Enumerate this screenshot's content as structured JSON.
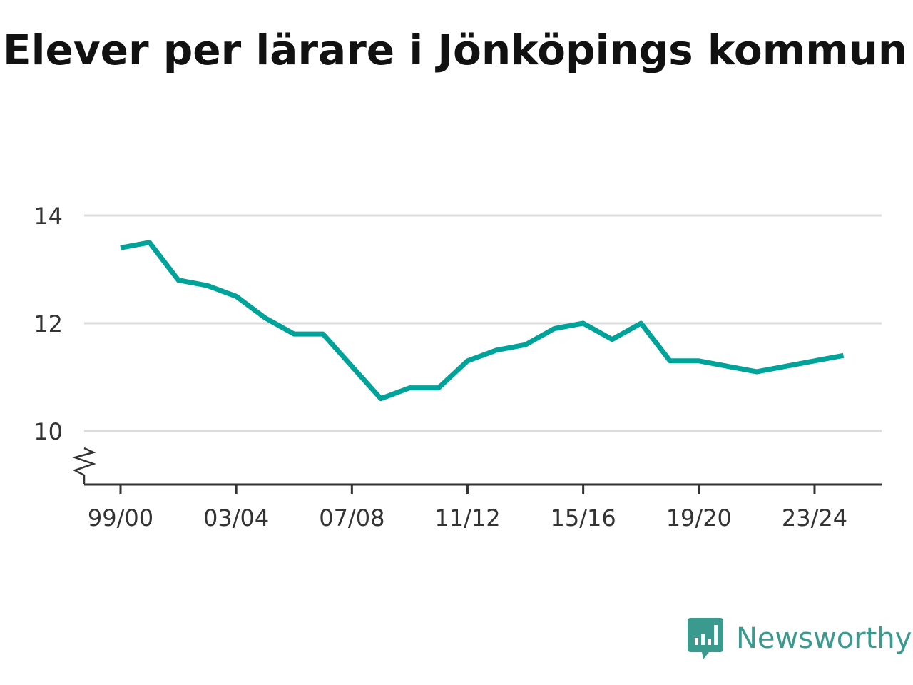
{
  "title": "Elever per lärare i Jönköpings kommun",
  "brand": {
    "name": "Newsworthy",
    "icon": "newsworthy-logo-icon",
    "color": "#3a9a8e"
  },
  "chart_data": {
    "type": "line",
    "title": "Elever per lärare i Jönköpings kommun",
    "xlabel": "",
    "ylabel": "",
    "x": [
      "99/00",
      "00/01",
      "01/02",
      "02/03",
      "03/04",
      "04/05",
      "05/06",
      "06/07",
      "07/08",
      "08/09",
      "09/10",
      "10/11",
      "11/12",
      "12/13",
      "13/14",
      "14/15",
      "15/16",
      "16/17",
      "17/18",
      "18/19",
      "19/20",
      "20/21",
      "21/22",
      "22/23",
      "23/24",
      "24/25"
    ],
    "x_tick_labels": [
      "99/00",
      "03/04",
      "07/08",
      "11/12",
      "15/16",
      "19/20",
      "23/24"
    ],
    "series": [
      {
        "color": "#00a39a",
        "values": [
          13.4,
          13.5,
          12.8,
          12.7,
          12.5,
          12.1,
          11.8,
          11.8,
          11.2,
          10.6,
          10.8,
          10.8,
          11.3,
          11.5,
          11.6,
          11.9,
          12.0,
          11.7,
          12.0,
          11.3,
          11.3,
          11.2,
          11.1,
          11.2,
          11.3,
          11.4
        ]
      }
    ],
    "y_ticks": [
      10,
      12,
      14
    ],
    "ylim": [
      9,
      14
    ],
    "y_axis_break": true,
    "grid": true,
    "legend": "none"
  }
}
